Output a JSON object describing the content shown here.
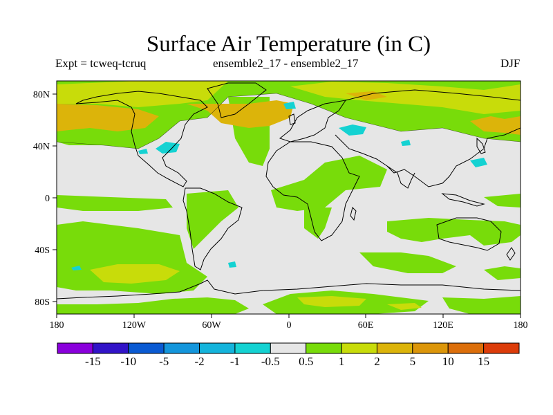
{
  "title": "Surface Air Temperature (in C)",
  "subtitle_left": "Expt = tcweq-tcruq",
  "subtitle_center": "ensemble2_17 - ensemble2_17",
  "subtitle_right": "DJF",
  "map": {
    "x_ticks": [
      "180",
      "120W",
      "60W",
      "0",
      "60E",
      "120E",
      "180"
    ],
    "y_ticks": [
      "80N",
      "40N",
      "0",
      "40S",
      "80S"
    ]
  },
  "legend": {
    "colors": [
      "#8a00dc",
      "#3214c8",
      "#0a5ad2",
      "#1496dc",
      "#14b4dc",
      "#14d2d2",
      "#e6e6e6",
      "#78dc0a",
      "#c8dc0a",
      "#dcb40a",
      "#dc960a",
      "#dc6e0a",
      "#dc3c0a"
    ],
    "labels": [
      "-15",
      "-10",
      "-5",
      "-2",
      "-1",
      "-0.5",
      "0.5",
      "1",
      "2",
      "5",
      "10",
      "15"
    ]
  }
}
